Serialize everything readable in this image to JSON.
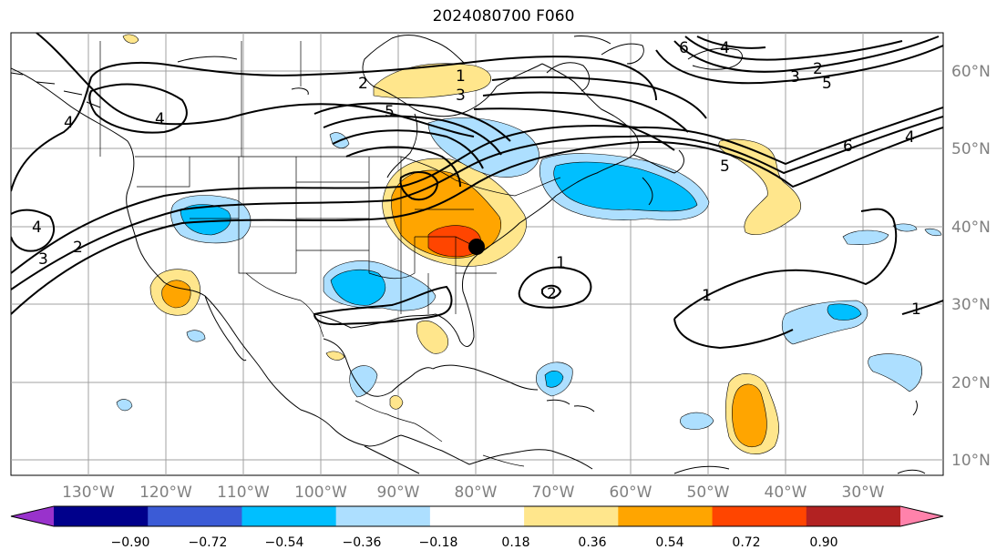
{
  "title": "2024080700 F060",
  "map": {
    "lat_labels": [
      "60°N",
      "50°N",
      "40°N",
      "30°N",
      "20°N",
      "10°N"
    ],
    "lon_labels": [
      "130°W",
      "120°W",
      "110°W",
      "100°W",
      "90°W",
      "80°W",
      "70°W",
      "60°W",
      "50°W",
      "40°W",
      "30°W"
    ],
    "contour_labels": [
      "1",
      "2",
      "3",
      "4",
      "5",
      "6"
    ],
    "point_marker": "black-dot",
    "colors": {
      "contour": "#000000",
      "grid": "#a0a0a0",
      "coast": "#000000"
    }
  },
  "colorbar": {
    "ticks": [
      "−0.90",
      "−0.72",
      "−0.54",
      "−0.36",
      "−0.18",
      "0.18",
      "0.36",
      "0.54",
      "0.72",
      "0.90"
    ],
    "colors": [
      "#9932cc",
      "#00008b",
      "#3b5bd6",
      "#00bfff",
      "#addfff",
      "#ffffff",
      "#ffe68c",
      "#ffa500",
      "#ff4500",
      "#b22222",
      "#ff82ab"
    ]
  }
}
